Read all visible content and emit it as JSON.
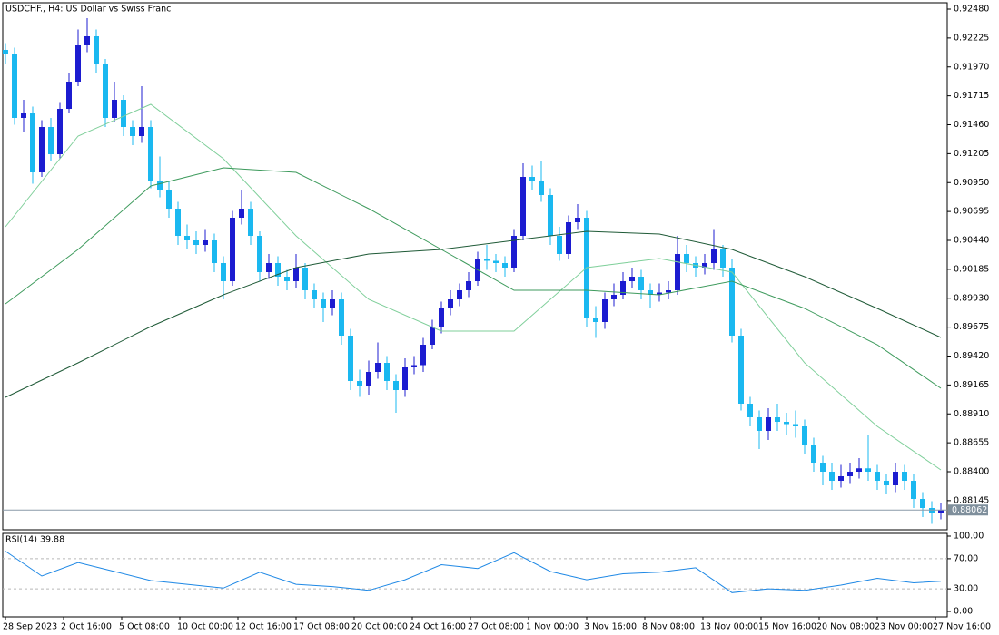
{
  "chart_data": [
    {
      "type": "candlestick",
      "title": "USDCHF., H4:  US Dollar vs Swiss Franc",
      "up_color": "#1c1cd0",
      "down_color": "#1ab8f0",
      "grid": false,
      "xlim": [
        -0.3,
        103.7
      ],
      "ylim": [
        0.87888,
        0.92536
      ],
      "yticks": [
        {
          "value": 0.9248,
          "label": "0.92480"
        },
        {
          "value": 0.92225,
          "label": "0.92225"
        },
        {
          "value": 0.9197,
          "label": "0.91970"
        },
        {
          "value": 0.91715,
          "label": "0.91715"
        },
        {
          "value": 0.9146,
          "label": "0.91460"
        },
        {
          "value": 0.91205,
          "label": "0.91205"
        },
        {
          "value": 0.9095,
          "label": "0.90950"
        },
        {
          "value": 0.90695,
          "label": "0.90695"
        },
        {
          "value": 0.9044,
          "label": "0.90440"
        },
        {
          "value": 0.90185,
          "label": "0.90185"
        },
        {
          "value": 0.8993,
          "label": "0.89930"
        },
        {
          "value": 0.89675,
          "label": "0.89675"
        },
        {
          "value": 0.8942,
          "label": "0.89420"
        },
        {
          "value": 0.89165,
          "label": "0.89165"
        },
        {
          "value": 0.8891,
          "label": "0.88910"
        },
        {
          "value": 0.88655,
          "label": "0.88655"
        },
        {
          "value": 0.884,
          "label": "0.88400"
        },
        {
          "value": 0.88145,
          "label": "0.88145"
        }
      ],
      "open": [
        0.9212,
        0.9208,
        0.9152,
        0.9156,
        0.9104,
        0.9144,
        0.912,
        0.916,
        0.9184,
        0.9216,
        0.9224,
        0.92,
        0.9152,
        0.9168,
        0.9144,
        0.9136,
        0.9144,
        0.9096,
        0.9088,
        0.9072,
        0.9048,
        0.9044,
        0.904,
        0.9044,
        0.9024,
        0.9008,
        0.9064,
        0.9072,
        0.9048,
        0.9016,
        0.9024,
        0.9012,
        0.9008,
        0.902,
        0.9,
        0.8992,
        0.8984,
        0.8992,
        0.896,
        0.892,
        0.8916,
        0.8928,
        0.8936,
        0.892,
        0.8912,
        0.8932,
        0.8934,
        0.8952,
        0.8968,
        0.8984,
        0.8992,
        0.9,
        0.9008,
        0.9028,
        0.9026,
        0.9024,
        0.902,
        0.9048,
        0.91,
        0.9096,
        0.9084,
        0.9048,
        0.9032,
        0.906,
        0.9064,
        0.8976,
        0.8972,
        0.8992,
        0.8996,
        0.9008,
        0.9012,
        0.9,
        0.8996,
        0.8998,
        0.9,
        0.9032,
        0.9024,
        0.902,
        0.9024,
        0.9036,
        0.902,
        0.896,
        0.89,
        0.8888,
        0.8876,
        0.8888,
        0.8884,
        0.8882,
        0.888,
        0.8864,
        0.8848,
        0.884,
        0.8832,
        0.8836,
        0.884,
        0.8843,
        0.884,
        0.8832,
        0.8828,
        0.884,
        0.8832,
        0.8816,
        0.8808,
        0.8804
      ],
      "high": [
        0.9218,
        0.9214,
        0.9168,
        0.9162,
        0.915,
        0.9152,
        0.9166,
        0.9192,
        0.923,
        0.924,
        0.923,
        0.9204,
        0.9184,
        0.9172,
        0.915,
        0.918,
        0.915,
        0.9118,
        0.9096,
        0.9078,
        0.9058,
        0.9052,
        0.9054,
        0.905,
        0.903,
        0.907,
        0.9088,
        0.9078,
        0.9052,
        0.9032,
        0.903,
        0.9018,
        0.9032,
        0.9024,
        0.9006,
        0.8998,
        0.9,
        0.8998,
        0.8966,
        0.893,
        0.8938,
        0.8954,
        0.8942,
        0.8926,
        0.894,
        0.8942,
        0.8958,
        0.8974,
        0.899,
        0.9,
        0.9006,
        0.9016,
        0.9034,
        0.904,
        0.9032,
        0.903,
        0.9054,
        0.9112,
        0.911,
        0.9114,
        0.909,
        0.9056,
        0.9066,
        0.9076,
        0.907,
        0.8986,
        0.8998,
        0.9006,
        0.9016,
        0.902,
        0.9018,
        0.9006,
        0.9006,
        0.9008,
        0.9048,
        0.904,
        0.903,
        0.9032,
        0.9054,
        0.904,
        0.9028,
        0.8966,
        0.8906,
        0.8894,
        0.8896,
        0.89,
        0.8892,
        0.8894,
        0.8886,
        0.887,
        0.8854,
        0.8848,
        0.8846,
        0.8848,
        0.8852,
        0.8872,
        0.8846,
        0.8838,
        0.8848,
        0.8846,
        0.8838,
        0.8822,
        0.8814,
        0.8812
      ],
      "low": [
        0.92,
        0.9146,
        0.914,
        0.9094,
        0.91,
        0.9114,
        0.9116,
        0.9156,
        0.918,
        0.921,
        0.9192,
        0.9144,
        0.9148,
        0.9136,
        0.9128,
        0.913,
        0.909,
        0.9082,
        0.9064,
        0.904,
        0.9036,
        0.9032,
        0.9034,
        0.9016,
        0.8992,
        0.9004,
        0.9058,
        0.904,
        0.9008,
        0.901,
        0.9004,
        0.9,
        0.9002,
        0.8992,
        0.8984,
        0.8972,
        0.8978,
        0.8952,
        0.8912,
        0.8906,
        0.8908,
        0.8922,
        0.8912,
        0.8892,
        0.8906,
        0.8926,
        0.8928,
        0.8948,
        0.8962,
        0.8978,
        0.8986,
        0.8994,
        0.9004,
        0.9018,
        0.9016,
        0.9012,
        0.9016,
        0.9044,
        0.9088,
        0.9078,
        0.904,
        0.9026,
        0.9028,
        0.9054,
        0.8968,
        0.8958,
        0.8966,
        0.8986,
        0.8992,
        0.9002,
        0.8992,
        0.8984,
        0.899,
        0.8992,
        0.8996,
        0.9016,
        0.9012,
        0.9014,
        0.9018,
        0.9012,
        0.8954,
        0.8894,
        0.888,
        0.886,
        0.8868,
        0.8876,
        0.8872,
        0.887,
        0.8856,
        0.884,
        0.8828,
        0.8824,
        0.8826,
        0.883,
        0.8834,
        0.8832,
        0.8824,
        0.882,
        0.8822,
        0.8824,
        0.8808,
        0.88,
        0.8794,
        0.8798
      ],
      "close": [
        0.9208,
        0.9152,
        0.9156,
        0.9104,
        0.9144,
        0.912,
        0.916,
        0.9184,
        0.9216,
        0.9224,
        0.92,
        0.9152,
        0.9168,
        0.9144,
        0.9136,
        0.9144,
        0.9096,
        0.9088,
        0.9072,
        0.9048,
        0.9044,
        0.904,
        0.9044,
        0.9024,
        0.9008,
        0.9064,
        0.9072,
        0.9048,
        0.9016,
        0.9024,
        0.9012,
        0.9008,
        0.902,
        0.9,
        0.8992,
        0.8984,
        0.8992,
        0.896,
        0.892,
        0.8916,
        0.8928,
        0.8936,
        0.892,
        0.8912,
        0.8932,
        0.8934,
        0.8952,
        0.8968,
        0.8984,
        0.8992,
        0.9,
        0.9008,
        0.9028,
        0.9026,
        0.9024,
        0.902,
        0.9048,
        0.91,
        0.9096,
        0.9084,
        0.9048,
        0.9032,
        0.906,
        0.9064,
        0.8976,
        0.8972,
        0.8992,
        0.8996,
        0.9008,
        0.9012,
        0.9,
        0.8996,
        0.8998,
        0.9,
        0.9032,
        0.9024,
        0.902,
        0.9024,
        0.9036,
        0.902,
        0.896,
        0.89,
        0.8888,
        0.8876,
        0.8888,
        0.8884,
        0.8882,
        0.888,
        0.8864,
        0.8848,
        0.884,
        0.8832,
        0.8836,
        0.884,
        0.8843,
        0.884,
        0.8832,
        0.8828,
        0.884,
        0.8832,
        0.8816,
        0.8808,
        0.8804,
        0.88062
      ],
      "series": [
        {
          "color": "#7fcf9a",
          "x": [
            0,
            8,
            16,
            24,
            32,
            40,
            48,
            56,
            64,
            72,
            80,
            88,
            96,
            103
          ],
          "values": [
            0.9056,
            0.9136,
            0.9164,
            0.9116,
            0.9048,
            0.8992,
            0.8964,
            0.8964,
            0.902,
            0.9028,
            0.9016,
            0.8936,
            0.888,
            0.88416
          ]
        },
        {
          "color": "#3d9a5c",
          "x": [
            0,
            8,
            16,
            24,
            32,
            40,
            48,
            56,
            64,
            72,
            80,
            88,
            96,
            103
          ],
          "values": [
            0.8988,
            0.9036,
            0.9092,
            0.9108,
            0.9104,
            0.9072,
            0.9036,
            0.9,
            0.9,
            0.8996,
            0.9008,
            0.8984,
            0.8952,
            0.89136
          ]
        },
        {
          "color": "#1f5a37",
          "x": [
            0,
            8,
            16,
            24,
            32,
            40,
            48,
            56,
            64,
            72,
            80,
            88,
            96,
            103
          ],
          "values": [
            0.89056,
            0.8936,
            0.8968,
            0.8996,
            0.902,
            0.9032,
            0.9036,
            0.9044,
            0.9052,
            0.90496,
            0.9036,
            0.9012,
            0.8984,
            0.89584
          ]
        }
      ]
    },
    {
      "type": "line",
      "title": "RSI(14) 39.88",
      "color": "#1e88e5",
      "xlim": [
        -0.3,
        103.7
      ],
      "ylim": [
        -7.2,
        103.6
      ],
      "yticks": [
        {
          "value": 100,
          "label": "100.00"
        },
        {
          "value": 70,
          "label": "70.00"
        },
        {
          "value": 30,
          "label": "30.00"
        },
        {
          "value": 0,
          "label": "0.00"
        }
      ],
      "levels": [
        70,
        30
      ],
      "xticks": [
        {
          "value": 0,
          "label": "28 Sep 2023"
        },
        {
          "value": 6.4,
          "label": "2 Oct 16:00"
        },
        {
          "value": 12.8,
          "label": "5 Oct 08:00"
        },
        {
          "value": 19.2,
          "label": "10 Oct 00:00"
        },
        {
          "value": 25.6,
          "label": "12 Oct 16:00"
        },
        {
          "value": 32,
          "label": "17 Oct 08:00"
        },
        {
          "value": 38.4,
          "label": "20 Oct 00:00"
        },
        {
          "value": 44.8,
          "label": "24 Oct 16:00"
        },
        {
          "value": 51.2,
          "label": "27 Oct 08:00"
        },
        {
          "value": 57.6,
          "label": "1 Nov 00:00"
        },
        {
          "value": 64,
          "label": "3 Nov 16:00"
        },
        {
          "value": 70.4,
          "label": "8 Nov 08:00"
        },
        {
          "value": 76.8,
          "label": "13 Nov 00:00"
        },
        {
          "value": 83.2,
          "label": "15 Nov 16:00"
        },
        {
          "value": 89.6,
          "label": "20 Nov 08:00"
        },
        {
          "value": 96,
          "label": "23 Nov 00:00"
        },
        {
          "value": 102.4,
          "label": "27 Nov 16:00"
        }
      ],
      "x": [
        0,
        4,
        8,
        12,
        16,
        20,
        24,
        28,
        32,
        36,
        40,
        44,
        48,
        52,
        56,
        60,
        64,
        68,
        72,
        76,
        80,
        84,
        88,
        92,
        96,
        100,
        103
      ],
      "values": [
        80,
        47,
        65,
        53,
        41,
        36,
        31,
        52,
        36,
        33,
        28,
        42,
        62,
        57,
        78,
        53,
        42,
        50,
        52,
        58,
        25,
        30,
        28,
        35,
        44,
        38,
        40
      ]
    }
  ]
}
